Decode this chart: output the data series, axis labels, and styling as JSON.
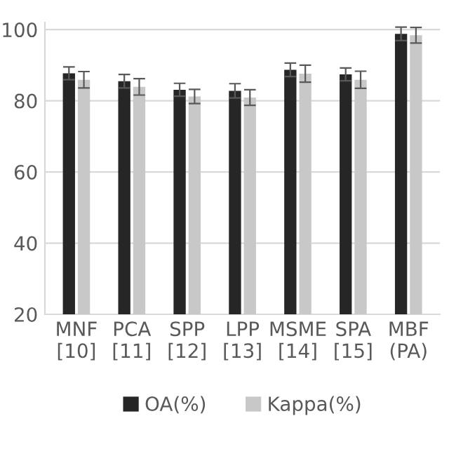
{
  "chart_data": {
    "type": "bar",
    "categories": [
      "MNF\n[10]",
      "PCA\n[11]",
      "SPP\n[12]",
      "LPP\n[13]",
      "MSME\n[14]",
      "SPA\n[15]",
      "MBF\n(PA)"
    ],
    "series": [
      {
        "name": "OA(%)",
        "color": "#262626",
        "values": [
          87.7,
          85.5,
          83.1,
          82.8,
          88.7,
          87.4,
          98.8
        ],
        "errors": [
          1.8,
          1.9,
          1.8,
          2.0,
          1.9,
          1.8,
          1.9
        ]
      },
      {
        "name": "Kappa(%)",
        "color": "#c8c8c8",
        "values": [
          85.9,
          83.9,
          81.2,
          80.9,
          87.6,
          85.9,
          98.4
        ],
        "errors": [
          2.3,
          2.3,
          2.0,
          2.2,
          2.4,
          2.4,
          2.2
        ]
      }
    ],
    "ylim": [
      20,
      102
    ],
    "yticks": [
      20,
      40,
      60,
      80,
      100
    ],
    "grid": "y",
    "legend": "bottom"
  }
}
